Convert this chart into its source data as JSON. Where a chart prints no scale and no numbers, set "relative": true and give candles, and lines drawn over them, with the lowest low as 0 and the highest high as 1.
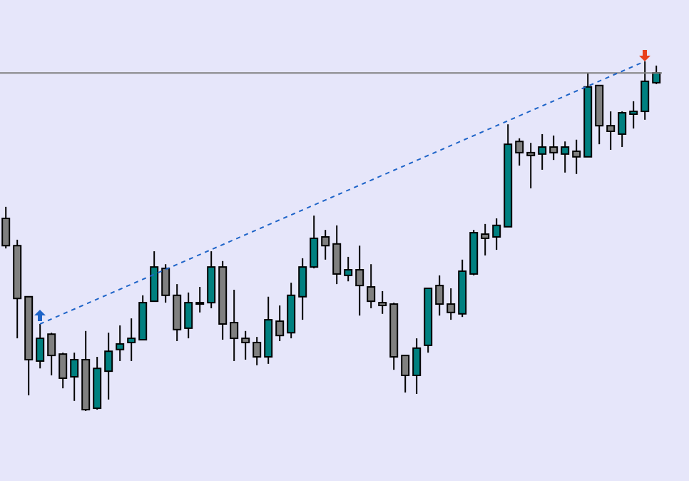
{
  "chart_data": {
    "type": "candlestick",
    "relative": true,
    "tick_labels": false,
    "categories": [
      null,
      null,
      null,
      null,
      null,
      null,
      null,
      null,
      null,
      null,
      null,
      null,
      null,
      null,
      null,
      null,
      null,
      null,
      null,
      null,
      null,
      null,
      null,
      null,
      null,
      null,
      null,
      null,
      null,
      null,
      null,
      null,
      null,
      null,
      null,
      null,
      null,
      null,
      null,
      null,
      null,
      null,
      null,
      null,
      null,
      null,
      null,
      null,
      null,
      null,
      null,
      null,
      null,
      null,
      null,
      null,
      null,
      null
    ],
    "ohlc": [
      [
        0.551,
        0.584,
        0.465,
        0.473
      ],
      [
        0.473,
        0.49,
        0.208,
        0.322
      ],
      [
        0.327,
        0.327,
        0.045,
        0.147
      ],
      [
        0.143,
        0.249,
        0.122,
        0.208
      ],
      [
        0.22,
        0.224,
        0.102,
        0.159
      ],
      [
        0.163,
        0.167,
        0.065,
        0.094
      ],
      [
        0.098,
        0.167,
        0.029,
        0.147
      ],
      [
        0.147,
        0.229,
        0,
        0.004
      ],
      [
        0.008,
        0.155,
        0.004,
        0.122
      ],
      [
        0.114,
        0.224,
        0.033,
        0.171
      ],
      [
        0.176,
        0.245,
        0.143,
        0.192
      ],
      [
        0.196,
        0.265,
        0.143,
        0.208
      ],
      [
        0.204,
        0.331,
        0.204,
        0.31
      ],
      [
        0.314,
        0.457,
        0.314,
        0.412
      ],
      [
        0.408,
        0.42,
        0.31,
        0.331
      ],
      [
        0.331,
        0.363,
        0.2,
        0.233
      ],
      [
        0.237,
        0.339,
        0.208,
        0.31
      ],
      [
        0.31,
        0.355,
        0.282,
        0.306
      ],
      [
        0.31,
        0.457,
        0.294,
        0.412
      ],
      [
        0.412,
        0.429,
        0.204,
        0.249
      ],
      [
        0.253,
        0.347,
        0.143,
        0.208
      ],
      [
        0.208,
        0.229,
        0.147,
        0.196
      ],
      [
        0.196,
        0.212,
        0.131,
        0.155
      ],
      [
        0.155,
        0.327,
        0.135,
        0.261
      ],
      [
        0.257,
        0.302,
        0.2,
        0.216
      ],
      [
        0.224,
        0.367,
        0.208,
        0.331
      ],
      [
        0.327,
        0.437,
        0.261,
        0.412
      ],
      [
        0.412,
        0.559,
        0.408,
        0.494
      ],
      [
        0.498,
        0.518,
        0.433,
        0.473
      ],
      [
        0.478,
        0.531,
        0.363,
        0.392
      ],
      [
        0.388,
        0.441,
        0.371,
        0.404
      ],
      [
        0.404,
        0.473,
        0.273,
        0.359
      ],
      [
        0.355,
        0.42,
        0.294,
        0.314
      ],
      [
        0.31,
        0.343,
        0.278,
        0.302
      ],
      [
        0.306,
        0.31,
        0.118,
        0.155
      ],
      [
        0.159,
        0.159,
        0.053,
        0.102
      ],
      [
        0.102,
        0.208,
        0.049,
        0.18
      ],
      [
        0.188,
        0.351,
        0.167,
        0.351
      ],
      [
        0.359,
        0.388,
        0.273,
        0.306
      ],
      [
        0.306,
        0.351,
        0.261,
        0.282
      ],
      [
        0.278,
        0.433,
        0.269,
        0.4
      ],
      [
        0.392,
        0.518,
        0.388,
        0.51
      ],
      [
        0.506,
        0.535,
        0.445,
        0.494
      ],
      [
        0.498,
        0.551,
        0.461,
        0.531
      ],
      [
        0.527,
        0.82,
        0.527,
        0.763
      ],
      [
        0.771,
        0.78,
        0.702,
        0.739
      ],
      [
        0.739,
        0.767,
        0.637,
        0.731
      ],
      [
        0.735,
        0.792,
        0.69,
        0.755
      ],
      [
        0.755,
        0.788,
        0.718,
        0.739
      ],
      [
        0.735,
        0.771,
        0.682,
        0.755
      ],
      [
        0.743,
        0.776,
        0.678,
        0.727
      ],
      [
        0.727,
        0.967,
        0.727,
        0.927
      ],
      [
        0.931,
        0.931,
        0.763,
        0.816
      ],
      [
        0.816,
        0.857,
        0.747,
        0.8
      ],
      [
        0.792,
        0.857,
        0.755,
        0.853
      ],
      [
        0.849,
        0.886,
        0.808,
        0.857
      ],
      [
        0.857,
        1,
        0.833,
        0.943
      ],
      [
        0.939,
        0.988,
        0.935,
        0.967
      ]
    ],
    "colors": [
      "#808080",
      "#808080",
      "#808080",
      "#008080",
      "#808080",
      "#808080",
      "#008080",
      "#808080",
      "#008080",
      "#008080",
      "#008080",
      "#008080",
      "#008080",
      "#008080",
      "#808080",
      "#808080",
      "#008080",
      "#808080",
      "#008080",
      "#808080",
      "#808080",
      "#808080",
      "#808080",
      "#008080",
      "#808080",
      "#008080",
      "#008080",
      "#008080",
      "#808080",
      "#808080",
      "#008080",
      "#808080",
      "#808080",
      "#808080",
      "#808080",
      "#808080",
      "#008080",
      "#008080",
      "#808080",
      "#808080",
      "#008080",
      "#008080",
      "#808080",
      "#008080",
      "#008080",
      "#808080",
      "#808080",
      "#008080",
      "#808080",
      "#008080",
      "#808080",
      "#008080",
      "#808080",
      "#808080",
      "#008080",
      "#008080",
      "#008080",
      "#008080"
    ],
    "series": [
      {
        "type": "line",
        "color": "#1e64c8",
        "line_style": "dashed",
        "values": [
          null,
          null,
          null,
          0.249,
          null,
          null,
          null,
          null,
          null,
          null,
          null,
          null,
          null,
          null,
          null,
          null,
          null,
          null,
          null,
          null,
          null,
          null,
          null,
          null,
          null,
          null,
          null,
          null,
          null,
          null,
          null,
          null,
          null,
          null,
          null,
          null,
          null,
          null,
          null,
          null,
          null,
          null,
          null,
          null,
          null,
          null,
          null,
          null,
          null,
          null,
          null,
          null,
          null,
          null,
          null,
          null,
          1,
          null
        ]
      }
    ],
    "ref_lines": [
      {
        "axis": "y",
        "value": 0.967,
        "color": "#808080"
      }
    ]
  }
}
